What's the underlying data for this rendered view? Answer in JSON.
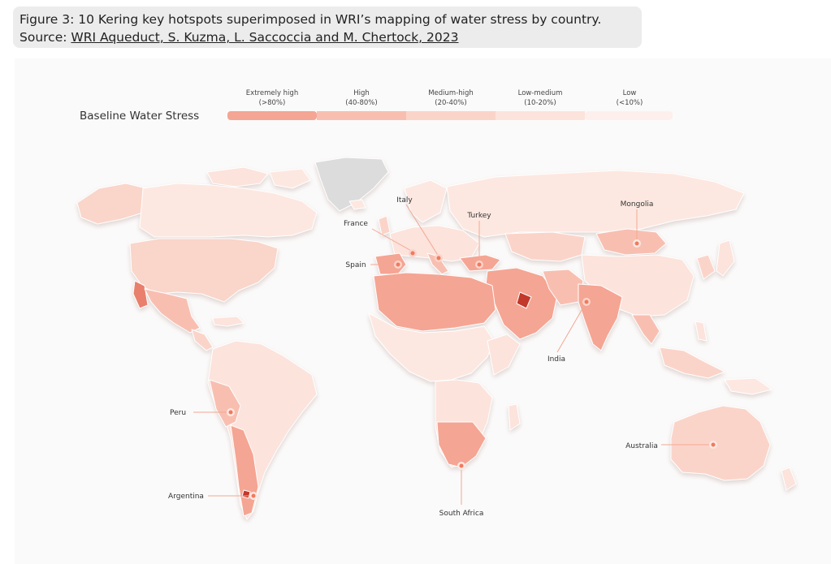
{
  "caption": {
    "line1": "Figure 3: 10 Kering key hotspots superimposed in WRI’s mapping of water stress by country.",
    "source_prefix": "Source: ",
    "source_link": "WRI Aqueduct, S. Kuzma, L. Saccoccia and M. Chertock, 2023"
  },
  "legend": {
    "title": "Baseline Water Stress",
    "items": [
      {
        "label": "Extremely high",
        "range": "(>80%)",
        "color": "#f5a593"
      },
      {
        "label": "High",
        "range": "(40-80%)",
        "color": "#f8bfb1"
      },
      {
        "label": "Medium-high",
        "range": "(20-40%)",
        "color": "#fbd4c9"
      },
      {
        "label": "Low-medium",
        "range": "(10-20%)",
        "color": "#fce3dc"
      },
      {
        "label": "Low",
        "range": "(<10%)",
        "color": "#fdf0ec"
      }
    ]
  },
  "hotspots": [
    {
      "name": "France"
    },
    {
      "name": "Italy"
    },
    {
      "name": "Spain"
    },
    {
      "name": "Turkey"
    },
    {
      "name": "Mongolia"
    },
    {
      "name": "India"
    },
    {
      "name": "Peru"
    },
    {
      "name": "Argentina"
    },
    {
      "name": "South Africa"
    },
    {
      "name": "Australia"
    }
  ],
  "colors": {
    "marker": "#f07a5e",
    "leader": "#f3a794",
    "no_data": "#dcdcdc"
  }
}
